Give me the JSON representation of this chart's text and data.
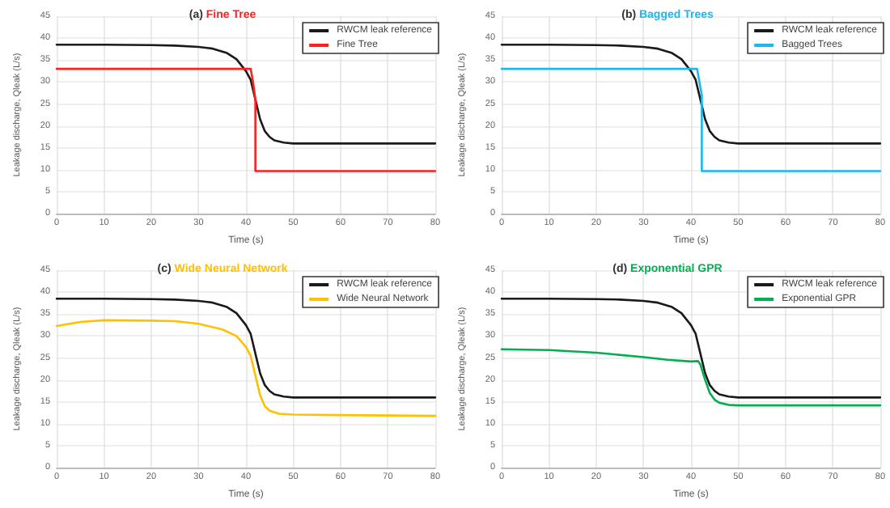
{
  "chart_data": [
    {
      "type": "line",
      "title": "(a) Fine Tree",
      "xlabel": "Time (s)",
      "ylabel": "Leakage discharge, Qleak (L/s)",
      "xlim": [
        0,
        80
      ],
      "xticks": [
        0,
        10,
        20,
        30,
        40,
        50,
        60,
        70,
        80
      ],
      "ylim": [
        0,
        45
      ],
      "yticks": [
        0,
        5,
        10,
        15,
        20,
        25,
        30,
        35,
        40,
        45
      ],
      "grid": true,
      "legend": "top right",
      "marker": "none",
      "line_style": "solid",
      "series": [
        {
          "name": "RWCM leak reference",
          "color": "#1a1a1a",
          "x": [
            0,
            10,
            20,
            25,
            30,
            33,
            36,
            38,
            40,
            41,
            42,
            43,
            44,
            45,
            46,
            48,
            50,
            60,
            80
          ],
          "values": [
            38.5,
            38.5,
            38.4,
            38.3,
            38,
            37.6,
            36.6,
            35.2,
            32.5,
            30.5,
            26,
            21.5,
            18.8,
            17.5,
            16.7,
            16.2,
            16,
            16,
            16
          ]
        },
        {
          "name": "Fine Tree",
          "color": "#ff1f1f",
          "x": [
            0,
            41,
            41.5,
            42,
            42,
            80
          ],
          "values": [
            33,
            33,
            30,
            26,
            9.7,
            9.7
          ]
        }
      ]
    },
    {
      "type": "line",
      "title": "(b) Bagged Trees",
      "xlabel": "Time (s)",
      "ylabel": "Leakage discharge, Qleak (L/s)",
      "xlim": [
        0,
        80
      ],
      "xticks": [
        0,
        10,
        20,
        30,
        40,
        50,
        60,
        70,
        80
      ],
      "ylim": [
        0,
        45
      ],
      "yticks": [
        0,
        5,
        10,
        15,
        20,
        25,
        30,
        35,
        40,
        45
      ],
      "grid": true,
      "legend": "top right",
      "marker": "none",
      "line_style": "solid",
      "series": [
        {
          "name": "RWCM leak reference",
          "color": "#1a1a1a",
          "x": [
            0,
            10,
            20,
            25,
            30,
            33,
            36,
            38,
            40,
            41,
            42,
            43,
            44,
            45,
            46,
            48,
            50,
            60,
            80
          ],
          "values": [
            38.5,
            38.5,
            38.4,
            38.3,
            38,
            37.6,
            36.6,
            35.2,
            32.5,
            30.5,
            26,
            21.5,
            18.8,
            17.5,
            16.7,
            16.2,
            16,
            16,
            16
          ]
        },
        {
          "name": "Bagged Trees",
          "color": "#1ab8ec",
          "x": [
            0,
            41.3,
            41.8,
            42.3,
            42.3,
            80
          ],
          "values": [
            33,
            33,
            30,
            27,
            9.7,
            9.7
          ]
        }
      ]
    },
    {
      "type": "line",
      "title": "(c) Wide Neural Network",
      "xlabel": "Time (s)",
      "ylabel": "Leakage discharge, Qleak (L/s)",
      "xlim": [
        0,
        80
      ],
      "xticks": [
        0,
        10,
        20,
        30,
        40,
        50,
        60,
        70,
        80
      ],
      "ylim": [
        0,
        45
      ],
      "yticks": [
        0,
        5,
        10,
        15,
        20,
        25,
        30,
        35,
        40,
        45
      ],
      "grid": true,
      "legend": "top right",
      "marker": "none",
      "line_style": "solid",
      "series": [
        {
          "name": "RWCM leak reference",
          "color": "#1a1a1a",
          "x": [
            0,
            10,
            20,
            25,
            30,
            33,
            36,
            38,
            40,
            41,
            42,
            43,
            44,
            45,
            46,
            48,
            50,
            60,
            80
          ],
          "values": [
            38.5,
            38.5,
            38.4,
            38.3,
            38,
            37.6,
            36.6,
            35.2,
            32.5,
            30.5,
            26,
            21.5,
            18.8,
            17.5,
            16.7,
            16.2,
            16,
            16,
            16
          ]
        },
        {
          "name": "Wide Neural Network",
          "color": "#ffc000",
          "x": [
            0,
            5,
            10,
            20,
            25,
            30,
            35,
            38,
            40,
            41,
            42,
            43,
            44,
            45,
            47,
            50,
            60,
            80
          ],
          "values": [
            32.3,
            33.2,
            33.6,
            33.5,
            33.4,
            32.8,
            31.5,
            30,
            27.5,
            25.5,
            21,
            16.5,
            14,
            13,
            12.3,
            12.1,
            12,
            11.8
          ]
        }
      ]
    },
    {
      "type": "line",
      "title": "(d) Exponential GPR",
      "xlabel": "Time (s)",
      "ylabel": "Leakage discharge, Qleak (L/s)",
      "xlim": [
        0,
        80
      ],
      "xticks": [
        0,
        10,
        20,
        30,
        40,
        50,
        60,
        70,
        80
      ],
      "ylim": [
        0,
        45
      ],
      "yticks": [
        0,
        5,
        10,
        15,
        20,
        25,
        30,
        35,
        40,
        45
      ],
      "grid": true,
      "legend": "top right",
      "marker": "none",
      "line_style": "solid",
      "series": [
        {
          "name": "RWCM leak reference",
          "color": "#1a1a1a",
          "x": [
            0,
            10,
            20,
            25,
            30,
            33,
            36,
            38,
            40,
            41,
            42,
            43,
            44,
            45,
            46,
            48,
            50,
            60,
            80
          ],
          "values": [
            38.5,
            38.5,
            38.4,
            38.3,
            38,
            37.6,
            36.6,
            35.2,
            32.5,
            30.5,
            26,
            21.5,
            18.8,
            17.5,
            16.7,
            16.2,
            16,
            16,
            16
          ]
        },
        {
          "name": "Exponential GPR",
          "color": "#00b050",
          "x": [
            0,
            10,
            20,
            30,
            35,
            40,
            41.5,
            42,
            43,
            44,
            45,
            46,
            48,
            50,
            80
          ],
          "values": [
            27,
            26.8,
            26.2,
            25.2,
            24.6,
            24.2,
            24.3,
            23.5,
            20,
            17,
            15.5,
            14.8,
            14.3,
            14.2,
            14.2
          ]
        }
      ]
    }
  ]
}
